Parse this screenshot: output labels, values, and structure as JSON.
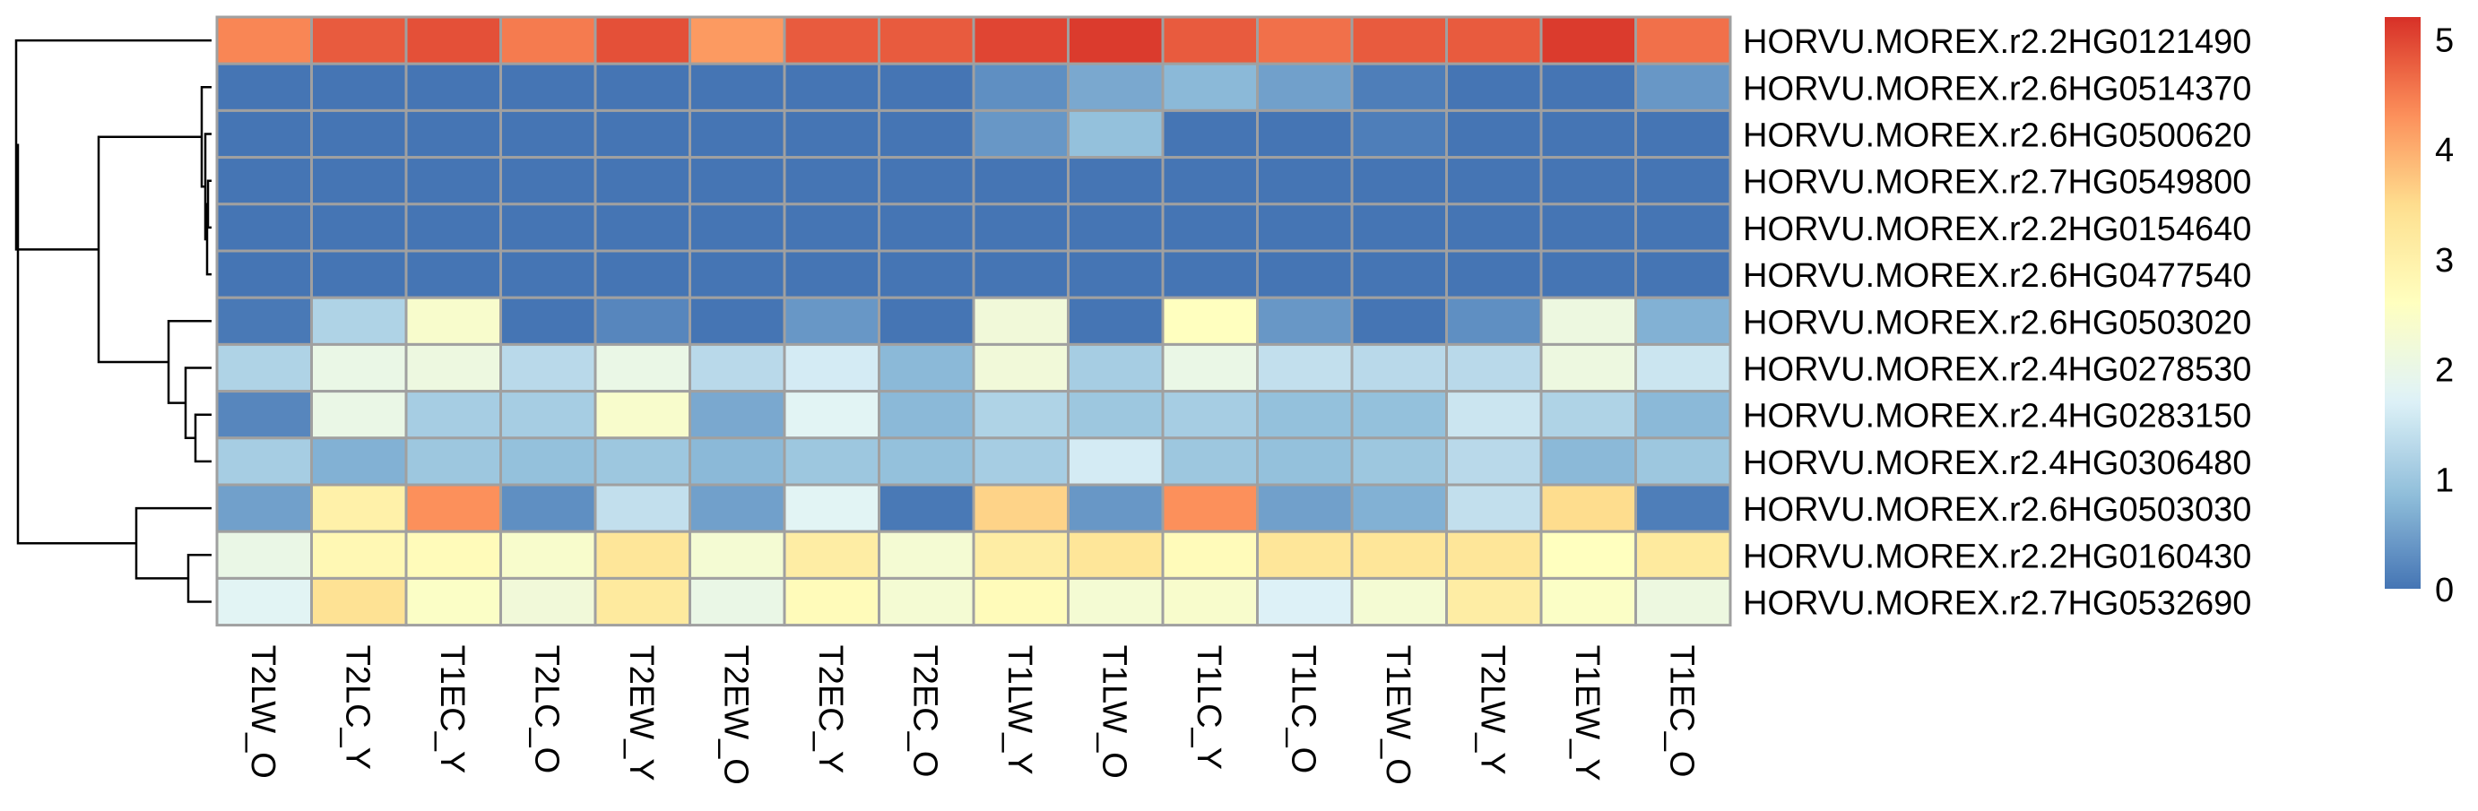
{
  "chart_data": {
    "type": "heatmap",
    "title": "",
    "xlabel": "",
    "ylabel": "",
    "row_labels": [
      "HORVU.MOREX.r2.2HG0121490",
      "HORVU.MOREX.r2.6HG0514370",
      "HORVU.MOREX.r2.6HG0500620",
      "HORVU.MOREX.r2.7HG0549800",
      "HORVU.MOREX.r2.2HG0154640",
      "HORVU.MOREX.r2.6HG0477540",
      "HORVU.MOREX.r2.6HG0503020",
      "HORVU.MOREX.r2.4HG0278530",
      "HORVU.MOREX.r2.4HG0283150",
      "HORVU.MOREX.r2.4HG0306480",
      "HORVU.MOREX.r2.6HG0503030",
      "HORVU.MOREX.r2.2HG0160430",
      "HORVU.MOREX.r2.7HG0532690"
    ],
    "col_labels": [
      "T2LW_O",
      "T2LC_Y",
      "T1EC_Y",
      "T2LC_O",
      "T2EW_Y",
      "T2EW_O",
      "T2EC_Y",
      "T2EC_O",
      "T1LW_Y",
      "T1LW_O",
      "T1LC_Y",
      "T1LC_O",
      "T1EW_O",
      "T2LW_Y",
      "T1EW_Y",
      "T1EC_O"
    ],
    "values": [
      [
        4.4,
        4.8,
        4.9,
        4.5,
        4.9,
        4.2,
        4.8,
        4.8,
        5.0,
        5.1,
        4.8,
        4.6,
        4.8,
        4.8,
        5.1,
        4.6
      ],
      [
        0.0,
        0.0,
        0.0,
        0.0,
        0.0,
        0.0,
        0.0,
        0.0,
        0.3,
        0.6,
        0.8,
        0.5,
        0.1,
        0.0,
        0.0,
        0.4
      ],
      [
        0.0,
        0.0,
        0.0,
        0.0,
        0.0,
        0.0,
        0.0,
        0.0,
        0.4,
        0.9,
        0.0,
        0.0,
        0.1,
        0.0,
        0.0,
        0.0
      ],
      [
        0.0,
        0.0,
        0.0,
        0.0,
        0.0,
        0.0,
        0.0,
        0.0,
        0.0,
        0.0,
        0.0,
        0.0,
        0.0,
        0.0,
        0.0,
        0.0
      ],
      [
        0.0,
        0.0,
        0.0,
        0.0,
        0.0,
        0.0,
        0.0,
        0.0,
        0.0,
        0.0,
        0.0,
        0.0,
        0.0,
        0.0,
        0.0,
        0.0
      ],
      [
        0.0,
        0.0,
        0.0,
        0.0,
        0.0,
        0.0,
        0.0,
        0.0,
        0.0,
        0.0,
        0.0,
        0.0,
        0.0,
        0.0,
        0.0,
        0.0
      ],
      [
        0.05,
        1.2,
        2.4,
        0.0,
        0.2,
        0.0,
        0.4,
        0.0,
        2.2,
        0.0,
        2.6,
        0.4,
        0.0,
        0.3,
        2.1,
        0.7
      ],
      [
        1.2,
        2.0,
        2.1,
        1.3,
        2.0,
        1.3,
        1.6,
        0.8,
        2.2,
        1.1,
        2.0,
        1.4,
        1.3,
        1.3,
        2.1,
        1.5
      ],
      [
        0.2,
        2.0,
        1.1,
        1.1,
        2.4,
        0.6,
        1.8,
        0.8,
        1.2,
        1.0,
        1.1,
        0.9,
        0.9,
        1.5,
        1.2,
        0.8
      ],
      [
        1.1,
        0.7,
        1.0,
        0.9,
        1.0,
        0.8,
        1.0,
        0.9,
        1.1,
        1.6,
        1.0,
        0.9,
        1.0,
        1.3,
        0.8,
        1.0
      ],
      [
        0.5,
        3.0,
        4.3,
        0.3,
        1.4,
        0.5,
        1.8,
        0.05,
        3.6,
        0.4,
        4.3,
        0.5,
        0.7,
        1.4,
        3.5,
        0.1
      ],
      [
        2.0,
        2.8,
        2.7,
        2.4,
        3.3,
        2.3,
        3.1,
        2.3,
        3.1,
        3.3,
        2.7,
        3.3,
        3.3,
        3.3,
        2.6,
        3.2
      ],
      [
        1.8,
        3.4,
        2.5,
        2.2,
        3.2,
        2.0,
        2.7,
        2.3,
        2.7,
        2.3,
        2.4,
        1.7,
        2.3,
        3.1,
        2.5,
        2.1
      ]
    ],
    "color_scale": {
      "min": 0,
      "max": 5.2,
      "ticks": [
        "0",
        "1",
        "2",
        "3",
        "4",
        "5"
      ],
      "stops": [
        "#4575B4",
        "#91BFDB",
        "#E0F3F8",
        "#FFFFBF",
        "#FEE090",
        "#FC8D59",
        "#D73027"
      ]
    },
    "row_dendrogram": true,
    "cell_border_color": "#A0A0A0"
  }
}
